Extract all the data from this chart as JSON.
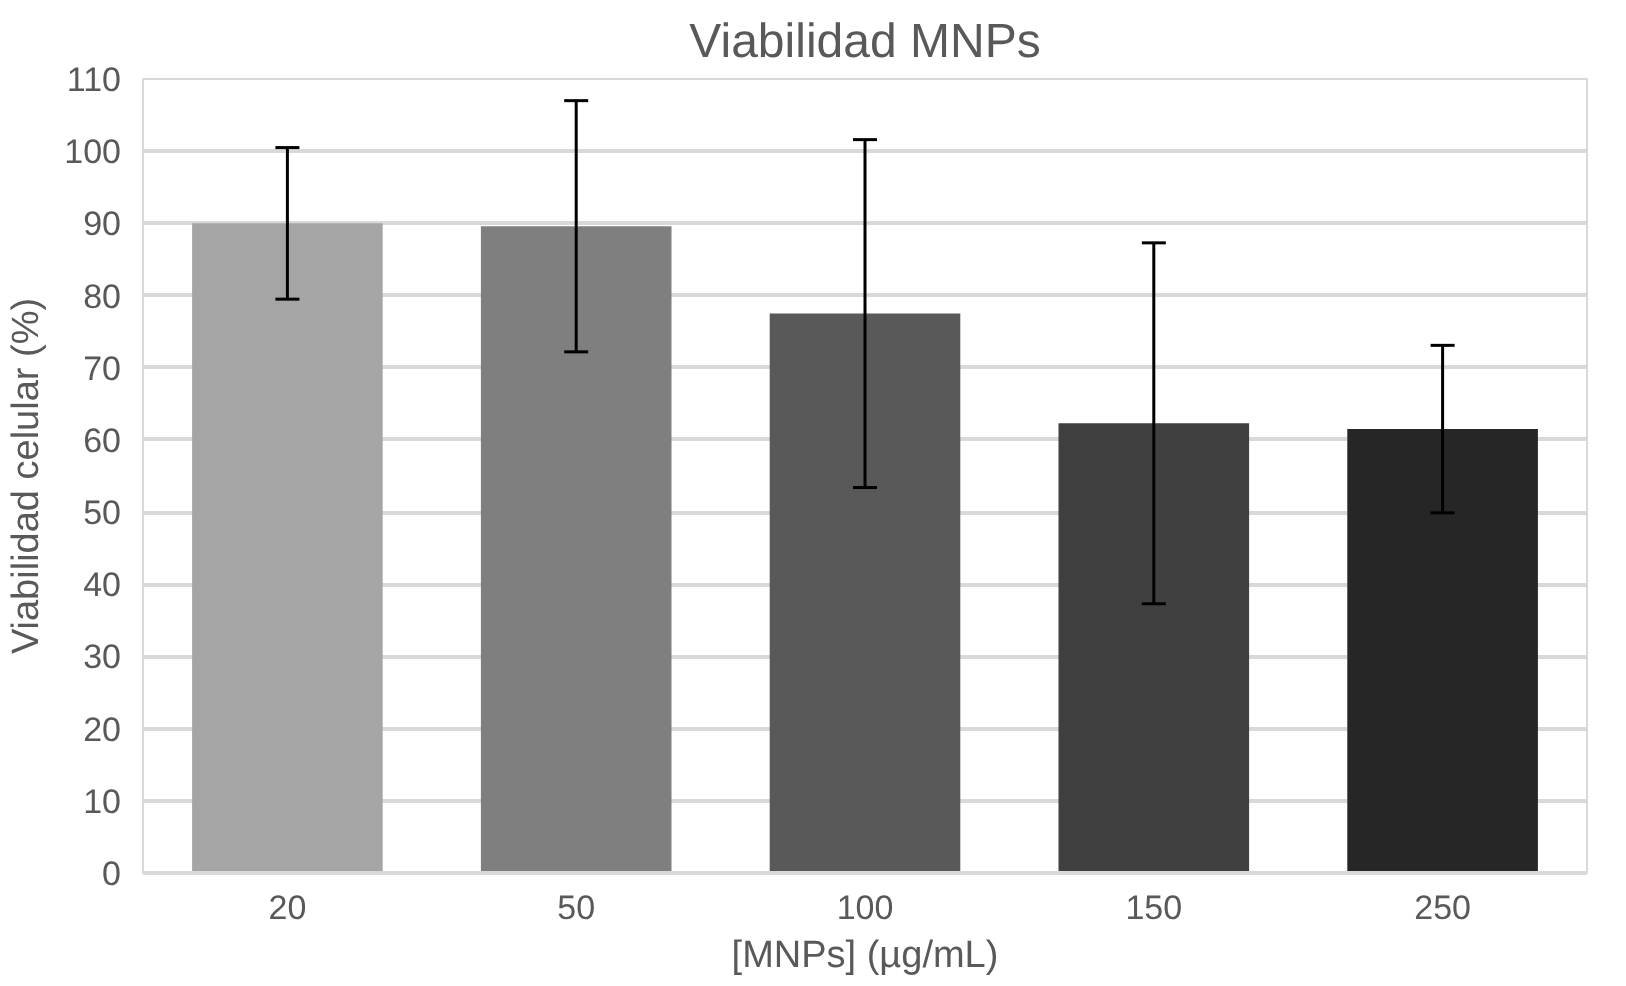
{
  "chart_data": {
    "type": "bar",
    "title": "Viabilidad MNPs",
    "xlabel": "[MNPs] (µg/mL)",
    "ylabel": "Viabilidad celular (%)",
    "categories": [
      "20",
      "50",
      "100",
      "150",
      "250"
    ],
    "values": [
      90.0,
      89.6,
      77.5,
      62.3,
      61.5
    ],
    "errors": [
      10.5,
      17.4,
      24.1,
      25.0,
      11.6
    ],
    "colors": [
      "#a5a5a5",
      "#7f7f7f",
      "#595959",
      "#404040",
      "#262626"
    ],
    "ylim": [
      0,
      110
    ],
    "yticks": [
      0,
      10,
      20,
      30,
      40,
      50,
      60,
      70,
      80,
      90,
      100,
      110
    ],
    "grid": "y"
  }
}
